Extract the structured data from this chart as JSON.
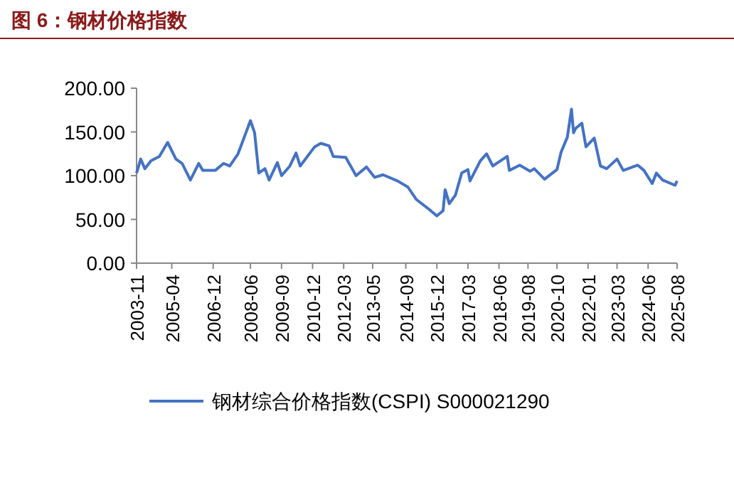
{
  "chart_data": {
    "type": "line",
    "title": "图 6：钢材价格指数",
    "x": [
      "2003-11",
      "2004-01",
      "2004-03",
      "2004-06",
      "2004-10",
      "2005-02",
      "2005-06",
      "2005-09",
      "2006-01",
      "2006-05",
      "2006-07",
      "2007-01",
      "2007-05",
      "2007-08",
      "2007-12",
      "2008-03",
      "2008-06",
      "2008-08",
      "2008-10",
      "2009-01",
      "2009-03",
      "2009-07",
      "2009-09",
      "2010-01",
      "2010-04",
      "2010-06",
      "2011-01",
      "2011-04",
      "2011-08",
      "2011-10",
      "2012-04",
      "2012-09",
      "2013-02",
      "2013-06",
      "2013-10",
      "2014-05",
      "2014-10",
      "2015-02",
      "2015-08",
      "2015-12",
      "2016-03",
      "2016-04",
      "2016-06",
      "2016-09",
      "2016-12",
      "2017-03",
      "2017-04",
      "2017-09",
      "2017-12",
      "2018-03",
      "2018-08",
      "2018-10",
      "2018-11",
      "2019-04",
      "2019-09",
      "2019-11",
      "2020-04",
      "2020-10",
      "2020-12",
      "2021-03",
      "2021-05",
      "2021-06",
      "2021-07",
      "2021-10",
      "2021-12",
      "2022-04",
      "2022-07",
      "2022-10",
      "2023-03",
      "2023-06",
      "2024-01",
      "2024-04",
      "2024-08",
      "2024-10",
      "2025-01",
      "2025-07",
      "2025-08"
    ],
    "series": [
      {
        "name": "钢材综合价格指数(CSPI) S000021290",
        "color": "#4472c4",
        "values": [
          103,
          119,
          108,
          117,
          122,
          138,
          119,
          114,
          95,
          114,
          106,
          106,
          114,
          111,
          125,
          144,
          163,
          149,
          103,
          108,
          95,
          115,
          100,
          111,
          126,
          111,
          133,
          137,
          134,
          122,
          121,
          100,
          110,
          98,
          101,
          94,
          87,
          73,
          62,
          54,
          60,
          84,
          68,
          78,
          103,
          107,
          94,
          117,
          125,
          111,
          119,
          122,
          106,
          112,
          105,
          108,
          96,
          107,
          127,
          144,
          176,
          149,
          154,
          160,
          133,
          143,
          111,
          108,
          119,
          106,
          112,
          106,
          91,
          103,
          95,
          89,
          94
        ]
      }
    ],
    "xlim": [
      "2003-11",
      "2025-08"
    ],
    "xticks": [
      "2003-11",
      "2005-04",
      "2006-12",
      "2008-06",
      "2009-09",
      "2010-12",
      "2012-03",
      "2013-05",
      "2014-09",
      "2015-12",
      "2017-03",
      "2018-06",
      "2019-08",
      "2020-10",
      "2022-01",
      "2023-03",
      "2024-06",
      "2025-08"
    ],
    "ylim": [
      0,
      200
    ],
    "yticks": [
      {
        "value": 0,
        "label": "0.00"
      },
      {
        "value": 50,
        "label": "50.00"
      },
      {
        "value": 100,
        "label": "100.00"
      },
      {
        "value": 150,
        "label": "150.00"
      },
      {
        "value": 200,
        "label": "200.00"
      }
    ],
    "legend": "bottom"
  }
}
